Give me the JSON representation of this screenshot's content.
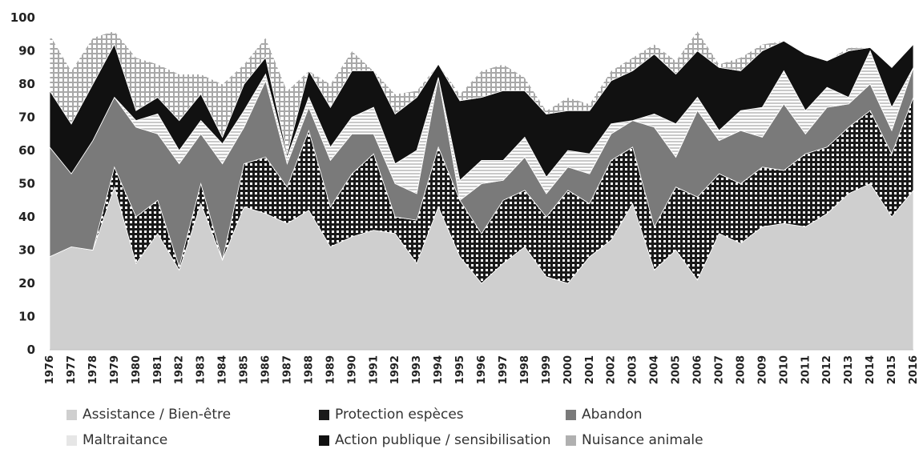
{
  "chart_data": {
    "type": "area",
    "stacked": true,
    "x": [
      1976,
      1977,
      1978,
      1979,
      1980,
      1981,
      1982,
      1983,
      1984,
      1985,
      1986,
      1987,
      1988,
      1989,
      1990,
      1991,
      1992,
      1993,
      1994,
      1995,
      1996,
      1997,
      1998,
      1999,
      2000,
      2001,
      2002,
      2003,
      2004,
      2005,
      2006,
      2007,
      2008,
      2009,
      2010,
      2011,
      2012,
      2013,
      2014,
      2015,
      2016
    ],
    "ylim": [
      0,
      100
    ],
    "yticks": [
      0,
      10,
      20,
      30,
      40,
      50,
      60,
      70,
      80,
      90,
      100
    ],
    "xtick_labels": [
      "1976",
      "1977",
      "1978",
      "1979",
      "1980",
      "1981",
      "1982",
      "1983",
      "1984",
      "1985",
      "1986",
      "1987",
      "1988",
      "1989",
      "1990",
      "1991",
      "1992",
      "1993",
      "1994",
      "1995",
      "1996",
      "1997",
      "1998",
      "1999",
      "2000",
      "2001",
      "2002",
      "2003",
      "2004",
      "2005",
      "2006",
      "2007",
      "2008",
      "2009",
      "2010",
      "2011",
      "2012",
      "2013",
      "2014",
      "2015",
      "2016"
    ],
    "grid": false,
    "legend_position": "bottom",
    "series": [
      {
        "name": "Assistance / Bien-être",
        "color": "#cfcfcf",
        "values": [
          28,
          31,
          30,
          49,
          26,
          35,
          24,
          44,
          27,
          43,
          41,
          38,
          42,
          31,
          34,
          36,
          35,
          26,
          43,
          28,
          20,
          26,
          31,
          22,
          20,
          28,
          33,
          44,
          24,
          30,
          21,
          35,
          32,
          37,
          38,
          37,
          41,
          47,
          50,
          40,
          48
        ]
      },
      {
        "name": "Protection espèces",
        "color": "#1a1a1a",
        "values": [
          0,
          0,
          0,
          6,
          14,
          10,
          1,
          6,
          0,
          13,
          17,
          11,
          24,
          12,
          19,
          23,
          5,
          13,
          18,
          17,
          15,
          19,
          17,
          18,
          28,
          16,
          24,
          17,
          13,
          19,
          25,
          18,
          18,
          18,
          16,
          22,
          20,
          20,
          22,
          19,
          28
        ]
      },
      {
        "name": "Abandon",
        "color": "#7a7a7a",
        "values": [
          33,
          22,
          33,
          21,
          27,
          20,
          31,
          15,
          29,
          11,
          23,
          7,
          7,
          14,
          12,
          6,
          10,
          8,
          21,
          0,
          15,
          6,
          10,
          7,
          7,
          9,
          8,
          8,
          30,
          9,
          26,
          10,
          16,
          9,
          20,
          6,
          12,
          7,
          8,
          7,
          9
        ]
      },
      {
        "name": "Maltraitance",
        "color": "#ebebeb",
        "values": [
          0,
          0,
          0,
          0,
          2,
          6,
          4,
          4,
          6,
          5,
          2,
          2,
          3,
          4,
          5,
          8,
          6,
          13,
          0,
          6,
          7,
          6,
          6,
          5,
          5,
          6,
          3,
          0,
          4,
          10,
          4,
          3,
          6,
          9,
          10,
          7,
          6,
          2,
          10,
          7,
          0
        ]
      },
      {
        "name": "Action publique / sensibilisation",
        "color": "#111111",
        "values": [
          17,
          15,
          17,
          16,
          3,
          5,
          9,
          8,
          2,
          8,
          5,
          1,
          8,
          12,
          14,
          11,
          15,
          16,
          4,
          24,
          19,
          21,
          14,
          19,
          12,
          13,
          13,
          15,
          18,
          15,
          14,
          19,
          12,
          17,
          9,
          17,
          8,
          14,
          1,
          12,
          7
        ]
      },
      {
        "name": "Nuisance animale",
        "color": "#b8b8b8",
        "values": [
          17,
          16,
          14,
          4,
          16,
          10,
          14,
          6,
          16,
          6,
          6,
          19,
          0,
          7,
          6,
          0,
          6,
          2,
          0,
          2,
          8,
          8,
          4,
          1,
          4,
          2,
          3,
          4,
          3,
          4,
          6,
          1,
          4,
          2,
          0,
          0,
          0,
          1,
          0,
          0,
          0
        ]
      }
    ]
  }
}
